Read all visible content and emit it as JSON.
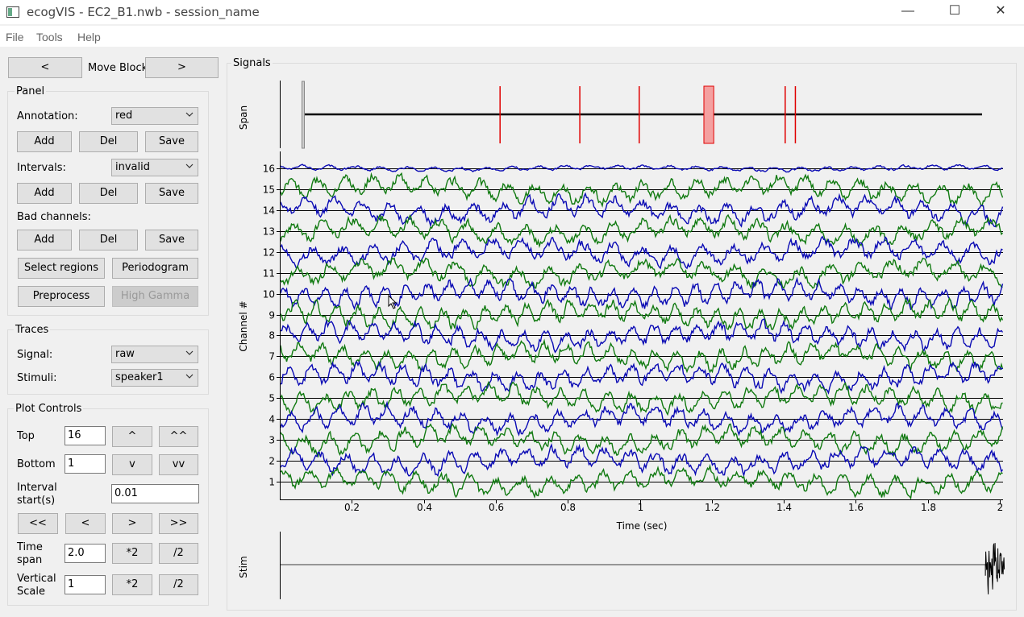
{
  "window": {
    "title": "ecogVIS - EC2_B1.nwb - session_name",
    "minimize_glyph": "—",
    "maximize_glyph": "☐",
    "close_glyph": "✕"
  },
  "menu": [
    "File",
    "Tools",
    "Help"
  ],
  "move_block": {
    "prev_label": "<",
    "label": "Move Block",
    "next_label": ">"
  },
  "panel": {
    "title": "Panel",
    "annotation_label": "Annotation:",
    "annotation_value": "red",
    "intervals_label": "Intervals:",
    "intervals_value": "invalid",
    "bad_channels_label": "Bad channels:",
    "add_label": "Add",
    "del_label": "Del",
    "save_label": "Save",
    "select_regions_label": "Select regions",
    "periodogram_label": "Periodogram",
    "preprocess_label": "Preprocess",
    "high_gamma_label": "High Gamma"
  },
  "traces": {
    "title": "Traces",
    "signal_label": "Signal:",
    "signal_value": "raw",
    "stimuli_label": "Stimuli:",
    "stimuli_value": "speaker1"
  },
  "plot_controls": {
    "title": "Plot Controls",
    "top_label": "Top",
    "top_value": "16",
    "up_label": "^",
    "up2_label": "^^",
    "bottom_label": "Bottom",
    "bottom_value": "1",
    "down_label": "v",
    "down2_label": "vv",
    "interval_label_1": "Interval",
    "interval_label_2": "start(s)",
    "interval_value": "0.01",
    "far_left_label": "<<",
    "left_label": "<",
    "right_label": ">",
    "far_right_label": ">>",
    "time_span_label_1": "Time",
    "time_span_label_2": "span",
    "time_span_value": "2.0",
    "vertical_scale_label_1": "Vertical",
    "vertical_scale_label_2": "Scale",
    "vertical_scale_value": "1",
    "double_label": "*2",
    "half_label": "/2"
  },
  "signals": {
    "title": "Signals",
    "span_axis_label": "Span",
    "channel_axis_label": "Channel #",
    "time_axis_label": "Time (sec)",
    "stim_axis_label": "Stim",
    "colors": {
      "even_channel": "#0a0ab4",
      "odd_channel": "#117a11",
      "annotation": "#e00000"
    }
  },
  "chart_data": [
    {
      "type": "line",
      "subtype": "stacked-traces",
      "xlabel": "Time (sec)",
      "ylabel": "Channel #",
      "xlim": [
        0,
        2
      ],
      "x_ticks": [
        0.2,
        0.4,
        0.6,
        0.8,
        1,
        1.2,
        1.4,
        1.6,
        1.8,
        2
      ],
      "y_ticks": [
        1,
        2,
        3,
        4,
        5,
        6,
        7,
        8,
        9,
        10,
        11,
        12,
        13,
        14,
        15,
        16
      ],
      "channels": [
        1,
        2,
        3,
        4,
        5,
        6,
        7,
        8,
        9,
        10,
        11,
        12,
        13,
        14,
        15,
        16
      ],
      "grid": true
    },
    {
      "type": "line",
      "subtype": "span-overview",
      "ylabel": "Span",
      "span_window": [
        0,
        2
      ],
      "annotations_x": [
        0.58,
        0.815,
        0.99,
        1.42,
        1.45
      ],
      "annotation_region": [
        1.19,
        1.2
      ]
    },
    {
      "type": "line",
      "subtype": "stimulus",
      "ylabel": "Stim",
      "burst_start": 1.96
    }
  ]
}
